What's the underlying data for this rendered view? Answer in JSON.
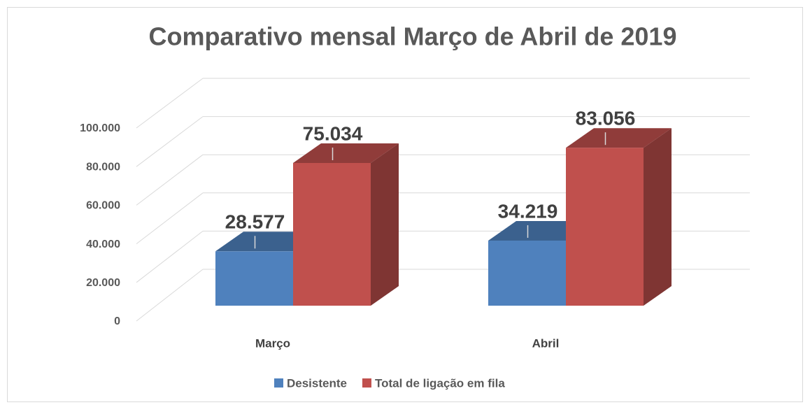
{
  "chart_data": {
    "type": "bar3d",
    "title": "Comparativo mensal Março de Abril de 2019",
    "categories": [
      "Março",
      "Abril"
    ],
    "series": [
      {
        "name": "Desistente",
        "color": "#4f81bd",
        "values": [
          28577,
          34219
        ],
        "value_labels": [
          "28.577",
          "34.219"
        ]
      },
      {
        "name": "Total de ligação em fila",
        "color": "#c0504d",
        "values": [
          75034,
          83056
        ],
        "value_labels": [
          "75.034",
          "83.056"
        ]
      }
    ],
    "ylim": [
      0,
      100000
    ],
    "yticks": [
      0,
      {
        "value": 20000,
        "label": "20.000"
      },
      {
        "value": 40000,
        "label": "40.000"
      },
      {
        "value": 60000,
        "label": "60.000"
      },
      {
        "value": 80000,
        "label": "80.000"
      },
      {
        "value": 100000,
        "label": "100.000"
      }
    ],
    "grid": true,
    "legend": "bottom"
  }
}
